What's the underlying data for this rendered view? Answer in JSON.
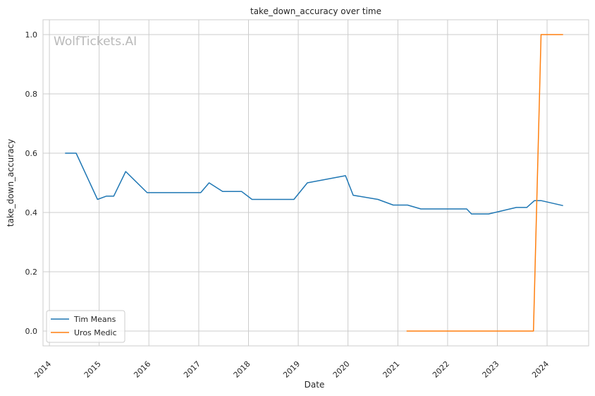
{
  "chart_data": {
    "type": "line",
    "title": "take_down_accuracy over time",
    "xlabel": "Date",
    "ylabel": "take_down_accuracy",
    "watermark": "WolfTickets.AI",
    "x_ticks": [
      "2014",
      "2015",
      "2016",
      "2017",
      "2018",
      "2019",
      "2020",
      "2021",
      "2022",
      "2023",
      "2024"
    ],
    "y_ticks": [
      "0.0",
      "0.2",
      "0.4",
      "0.6",
      "0.8",
      "1.0"
    ],
    "xlim": [
      "2013-11-15",
      "2024-11-01"
    ],
    "ylim": [
      -0.05,
      1.05
    ],
    "grid": true,
    "legend_position": "lower-left",
    "series": [
      {
        "name": "Tim Means",
        "color": "#1f77b4",
        "points": [
          [
            "2014-04-26",
            0.6
          ],
          [
            "2014-07-16",
            0.6
          ],
          [
            "2014-12-20",
            0.444
          ],
          [
            "2015-02-22",
            0.455
          ],
          [
            "2015-04-18",
            0.455
          ],
          [
            "2015-07-15",
            0.538
          ],
          [
            "2015-12-19",
            0.467
          ],
          [
            "2017-01-15",
            0.467
          ],
          [
            "2017-03-18",
            0.5
          ],
          [
            "2017-06-25",
            0.471
          ],
          [
            "2017-11-11",
            0.471
          ],
          [
            "2018-01-27",
            0.444
          ],
          [
            "2018-11-30",
            0.444
          ],
          [
            "2019-03-09",
            0.5
          ],
          [
            "2019-12-14",
            0.524
          ],
          [
            "2020-02-08",
            0.458
          ],
          [
            "2020-08-08",
            0.444
          ],
          [
            "2020-11-28",
            0.425
          ],
          [
            "2021-03-13",
            0.425
          ],
          [
            "2021-06-19",
            0.412
          ],
          [
            "2022-05-21",
            0.412
          ],
          [
            "2022-06-25",
            0.395
          ],
          [
            "2022-10-29",
            0.395
          ],
          [
            "2023-05-20",
            0.417
          ],
          [
            "2023-08-05",
            0.417
          ],
          [
            "2023-09-30",
            0.44
          ],
          [
            "2023-11-18",
            0.44
          ],
          [
            "2024-04-27",
            0.423
          ]
        ]
      },
      {
        "name": "Uros Medic",
        "color": "#ff7f0e",
        "points": [
          [
            "2021-03-06",
            0.0
          ],
          [
            "2023-09-23",
            0.0
          ],
          [
            "2023-11-18",
            1.0
          ],
          [
            "2024-04-27",
            1.0
          ]
        ]
      }
    ]
  }
}
